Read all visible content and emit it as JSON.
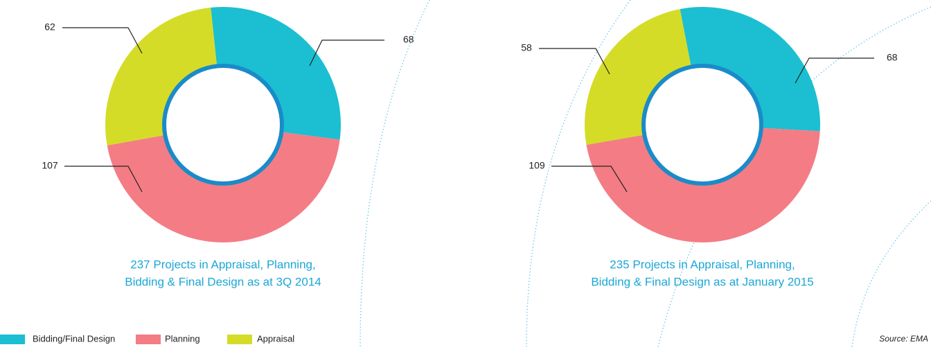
{
  "chart_data": [
    {
      "type": "pie",
      "title": [
        "237 Projects in Appraisal, Planning,",
        "Bidding & Final Design as at 3Q 2014"
      ],
      "categories": [
        "Bidding/Final Design",
        "Planning",
        "Appraisal"
      ],
      "values": [
        68,
        107,
        62
      ],
      "colors": [
        "#1bbfd1",
        "#f47c85",
        "#d4dc27"
      ]
    },
    {
      "type": "pie",
      "title": [
        "235 Projects in Appraisal, Planning,",
        "Bidding & Final Design as at January 2015"
      ],
      "categories": [
        "Bidding/Final Design",
        "Planning",
        "Appraisal"
      ],
      "values": [
        68,
        109,
        58
      ],
      "colors": [
        "#1bbfd1",
        "#f47c85",
        "#d4dc27"
      ]
    }
  ],
  "source": "Source: EMA"
}
